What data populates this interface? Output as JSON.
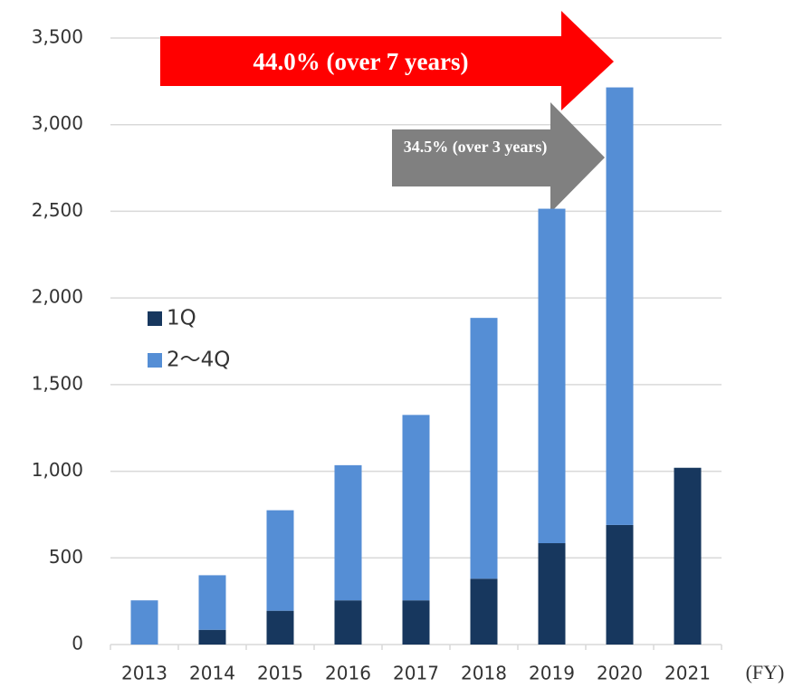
{
  "chart_data": {
    "type": "stacked_bar",
    "x_label": "(FY)",
    "categories": [
      "2013",
      "2014",
      "2015",
      "2016",
      "2017",
      "2018",
      "2019",
      "2020",
      "2021"
    ],
    "series": [
      {
        "name": "1Q",
        "color": "#17375e",
        "values": [
          0,
          85,
          195,
          255,
          255,
          380,
          585,
          690,
          1020
        ]
      },
      {
        "name": "2～4Q",
        "color": "#558ed5",
        "values": [
          255,
          315,
          580,
          780,
          1070,
          1505,
          1930,
          2525,
          null
        ]
      }
    ],
    "ylim": [
      0,
      3500
    ],
    "yticks": [
      0,
      500,
      {
        "value": 1000,
        "label": "1,000"
      },
      {
        "value": 1500,
        "label": "1,500"
      },
      {
        "value": 2000,
        "label": "2,000"
      },
      {
        "value": 2500,
        "label": "2,500"
      },
      {
        "value": 3000,
        "label": "3,000"
      },
      {
        "value": 3500,
        "label": "3,500"
      }
    ],
    "grid": true,
    "annotations": [
      "44.0% (over 7 years)",
      "34.5% (over 3 years)"
    ]
  }
}
